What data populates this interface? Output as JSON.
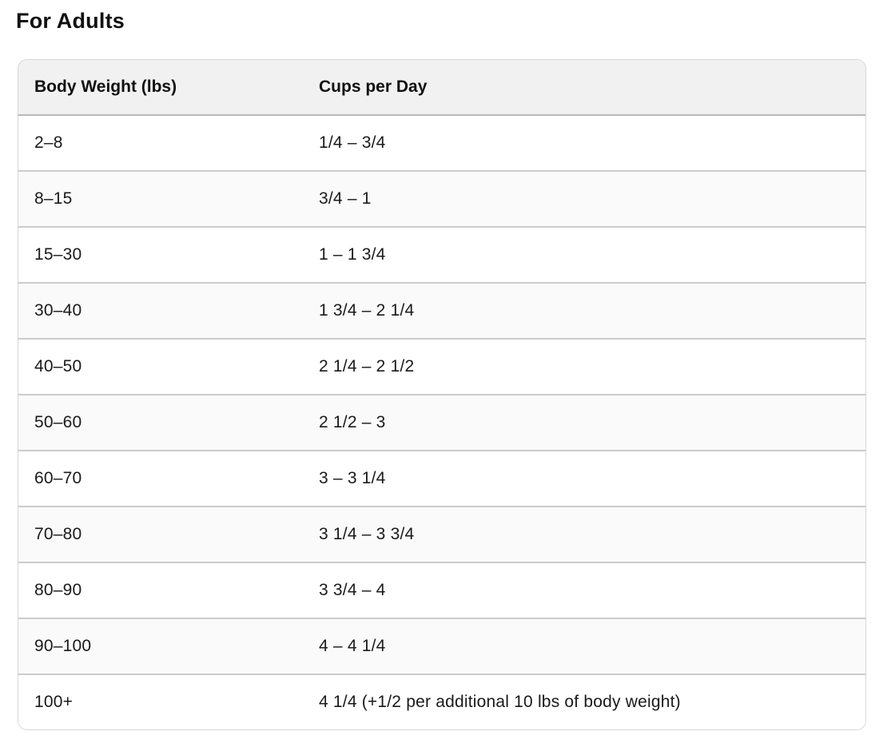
{
  "page": {
    "title": "For Adults"
  },
  "table": {
    "headers": [
      "Body Weight (lbs)",
      "Cups per Day"
    ],
    "rows": [
      [
        "2–8",
        "1/4 – 3/4"
      ],
      [
        "8–15",
        "3/4 – 1"
      ],
      [
        "15–30",
        "1 – 1 3/4"
      ],
      [
        "30–40",
        "1 3/4 – 2 1/4"
      ],
      [
        "40–50",
        "2 1/4 – 2 1/2"
      ],
      [
        "50–60",
        "2 1/2 – 3"
      ],
      [
        "60–70",
        "3 – 3 1/4"
      ],
      [
        "70–80",
        "3 1/4 – 3 3/4"
      ],
      [
        "80–90",
        "3 3/4 – 4"
      ],
      [
        "90–100",
        "4 – 4 1/4"
      ],
      [
        "100+",
        "4 1/4 (+1/2 per additional 10 lbs of body weight)"
      ]
    ],
    "colors": {
      "header_bg": "#f1f1f1",
      "row_alt_bg": "#fafafa",
      "header_divider": "#b9b9b9",
      "row_divider": "#cccccc",
      "card_border": "#d7d7d7",
      "text": "#1a1a1a"
    }
  }
}
